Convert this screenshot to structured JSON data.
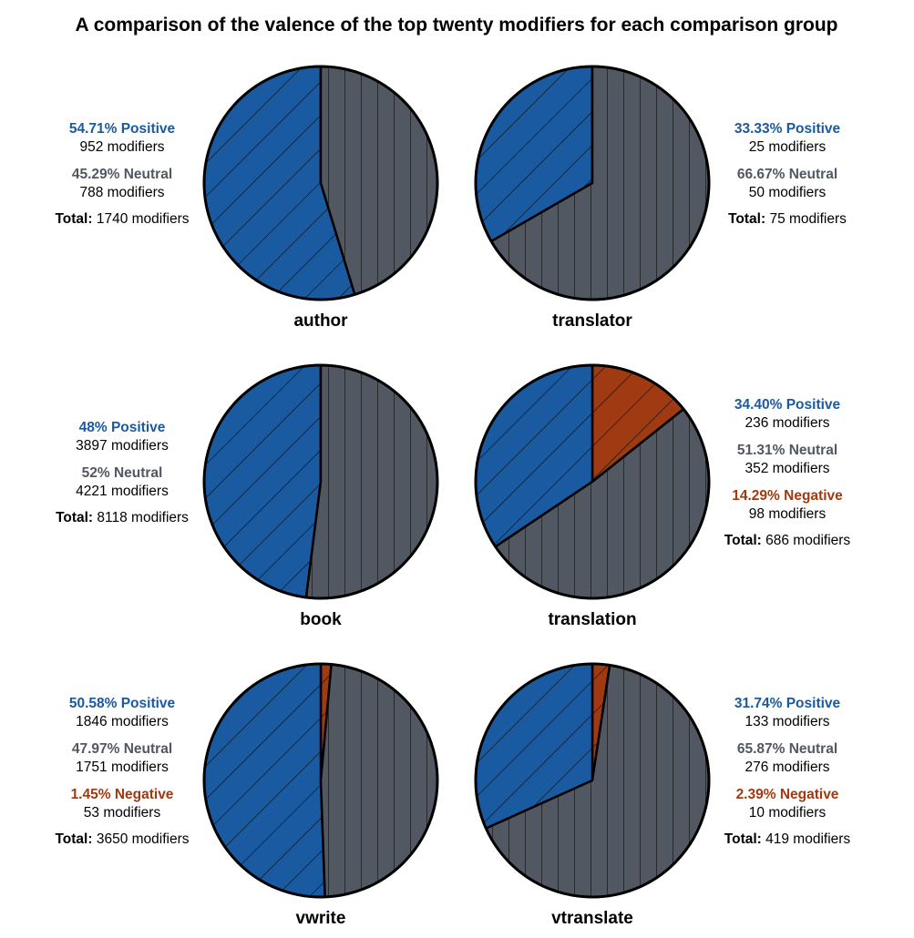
{
  "chart_data": {
    "type": "pie",
    "title": "A comparison of the valence of the top twenty modifiers for each comparison group",
    "total_label": "Total:",
    "colors": {
      "positive": "#1a5aa0",
      "neutral": "#515861",
      "negative": "#a03a12"
    },
    "patterns": {
      "positive": "diagonal-hatch",
      "neutral": "vertical-hatch",
      "negative": "diagonal-hatch"
    },
    "pies": [
      {
        "label": "author",
        "info_side": "left",
        "slices": [
          {
            "category": "positive",
            "percent_text": "54.71% Positive",
            "count_text": "952 modifiers",
            "percent": 54.71,
            "count": 952
          },
          {
            "category": "neutral",
            "percent_text": "45.29% Neutral",
            "count_text": "788 modifiers",
            "percent": 45.29,
            "count": 788
          }
        ],
        "total_text": "1740 modifiers",
        "total": 1740
      },
      {
        "label": "translator",
        "info_side": "right",
        "slices": [
          {
            "category": "positive",
            "percent_text": "33.33% Positive",
            "count_text": "25 modifiers",
            "percent": 33.33,
            "count": 25
          },
          {
            "category": "neutral",
            "percent_text": "66.67% Neutral",
            "count_text": "50 modifiers",
            "percent": 66.67,
            "count": 50
          }
        ],
        "total_text": "75 modifiers",
        "total": 75
      },
      {
        "label": "book",
        "info_side": "left",
        "slices": [
          {
            "category": "positive",
            "percent_text": "48% Positive",
            "count_text": "3897 modifiers",
            "percent": 48,
            "count": 3897
          },
          {
            "category": "neutral",
            "percent_text": "52% Neutral",
            "count_text": "4221 modifiers",
            "percent": 52,
            "count": 4221
          }
        ],
        "total_text": "8118 modifiers",
        "total": 8118
      },
      {
        "label": "translation",
        "info_side": "right",
        "slices": [
          {
            "category": "positive",
            "percent_text": "34.40% Positive",
            "count_text": "236 modifiers",
            "percent": 34.4,
            "count": 236
          },
          {
            "category": "neutral",
            "percent_text": "51.31% Neutral",
            "count_text": "352 modifiers",
            "percent": 51.31,
            "count": 352
          },
          {
            "category": "negative",
            "percent_text": "14.29% Negative",
            "count_text": "98 modifiers",
            "percent": 14.29,
            "count": 98
          }
        ],
        "total_text": "686 modifiers",
        "total": 686
      },
      {
        "label": "vwrite",
        "info_side": "left",
        "slices": [
          {
            "category": "positive",
            "percent_text": "50.58% Positive",
            "count_text": "1846 modifiers",
            "percent": 50.58,
            "count": 1846
          },
          {
            "category": "neutral",
            "percent_text": "47.97% Neutral",
            "count_text": "1751 modifiers",
            "percent": 47.97,
            "count": 1751
          },
          {
            "category": "negative",
            "percent_text": "1.45% Negative",
            "count_text": "53 modifiers",
            "percent": 1.45,
            "count": 53
          }
        ],
        "total_text": "3650 modifiers",
        "total": 3650
      },
      {
        "label": "vtranslate",
        "info_side": "right",
        "slices": [
          {
            "category": "positive",
            "percent_text": "31.74% Positive",
            "count_text": "133 modifiers",
            "percent": 31.74,
            "count": 133
          },
          {
            "category": "neutral",
            "percent_text": "65.87% Neutral",
            "count_text": "276 modifiers",
            "percent": 65.87,
            "count": 276
          },
          {
            "category": "negative",
            "percent_text": "2.39% Negative",
            "count_text": "10 modifiers",
            "percent": 2.39,
            "count": 10
          }
        ],
        "total_text": "419 modifiers",
        "total": 419
      }
    ]
  }
}
